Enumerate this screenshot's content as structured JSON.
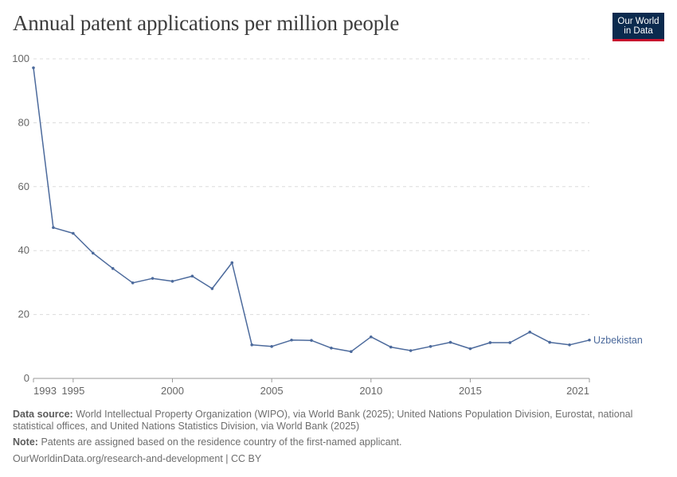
{
  "title": "Annual patent applications per million people",
  "logo": {
    "line1": "Our World",
    "line2": "in Data"
  },
  "chart_data": {
    "type": "line",
    "title": "Annual patent applications per million people",
    "xlabel": "",
    "ylabel": "",
    "xlim": [
      1993,
      2021
    ],
    "ylim": [
      0,
      100
    ],
    "x_ticks": [
      1993,
      1995,
      2000,
      2005,
      2010,
      2015,
      2021
    ],
    "y_ticks": [
      0,
      20,
      40,
      60,
      80,
      100
    ],
    "grid": true,
    "series": [
      {
        "name": "Uzbekistan",
        "color": "#4c6a9c",
        "x": [
          1993,
          1994,
          1995,
          1996,
          1997,
          1998,
          1999,
          2000,
          2001,
          2002,
          2003,
          2004,
          2005,
          2006,
          2007,
          2008,
          2009,
          2010,
          2011,
          2012,
          2013,
          2014,
          2015,
          2016,
          2017,
          2018,
          2019,
          2020,
          2021
        ],
        "y": [
          97.2,
          47.2,
          45.4,
          39.2,
          34.4,
          29.9,
          31.3,
          30.4,
          32.0,
          28.1,
          36.2,
          10.5,
          10.0,
          12.0,
          11.9,
          9.5,
          8.4,
          13.0,
          9.8,
          8.7,
          10.0,
          11.3,
          9.3,
          11.2,
          11.2,
          14.5,
          11.3,
          10.5,
          12.0
        ]
      }
    ]
  },
  "footer": {
    "source_label": "Data source:",
    "source_text": "World Intellectual Property Organization (WIPO), via World Bank (2025); United Nations Population Division, Eurostat, national statistical offices, and United Nations Statistics Division, via World Bank (2025)",
    "note_label": "Note:",
    "note_text": "Patents are assigned based on the residence country of the first-named applicant.",
    "url": "OurWorldinData.org/research-and-development | CC BY"
  }
}
